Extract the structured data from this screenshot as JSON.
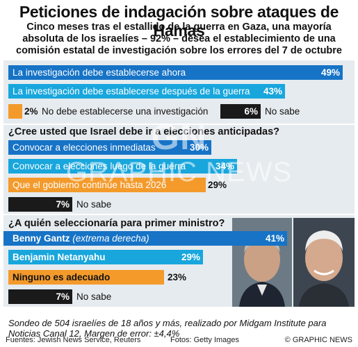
{
  "title": "Peticiones de indagación sobre ataques de Hamas",
  "subtitle_lines": [
    "Cinco meses tras el estallido de la guerra en Gaza, una mayoría",
    "absoluta de los israelíes – 92% – desea el establecimiento de una",
    "comisión estatal de investigación sobre los errores del 7 de octubre"
  ],
  "chart_data": [
    {
      "type": "bar",
      "question": "",
      "categories": [
        "La investigación debe establecerse ahora",
        "La investigación debe establecerse después de la guerra",
        "No debe establecerse una investigación",
        "No sabe"
      ],
      "values": [
        49,
        43,
        2,
        6
      ],
      "value_labels": [
        "49%",
        "43%",
        "2%",
        "6%"
      ],
      "colors": [
        "#1673c6",
        "#18a6dd",
        "#f39a2b",
        "#1a1a1a"
      ],
      "xlim": [
        0,
        50
      ]
    },
    {
      "type": "bar",
      "question": "¿Cree usted que Israel debe ir a elecciones anticipadas?",
      "categories": [
        "Convocar a elecciones inmediatas",
        "Convocar a elecciones luego de la guerra",
        "Que el gobierno continúe hasta 2026",
        "No sabe"
      ],
      "values": [
        30,
        34,
        29,
        7
      ],
      "value_labels": [
        "30%",
        "34%",
        "29%",
        "7%"
      ],
      "colors": [
        "#1673c6",
        "#18a6dd",
        "#f39a2b",
        "#1a1a1a"
      ],
      "xlim": [
        0,
        35
      ]
    },
    {
      "type": "bar",
      "question": "¿A quién seleccionaría para primer ministro?",
      "categories": [
        "Benny Gantz",
        "Benjamin Netanyahu",
        "Ninguno es adecuado",
        "No sabe"
      ],
      "category_notes": [
        "(extrema derecha)",
        "",
        "",
        ""
      ],
      "values": [
        41,
        29,
        23,
        7
      ],
      "value_labels": [
        "41%",
        "29%",
        "23%",
        "7%"
      ],
      "colors": [
        "#1673c6",
        "#18a6dd",
        "#f39a2b",
        "#1a1a1a"
      ],
      "xlim": [
        0,
        42
      ]
    }
  ],
  "watermark": {
    "logo": "GN",
    "text": "GRAPHIC NEWS"
  },
  "footnote": "Sondeo de 504 israelíes de 18 años y más, realizado por Midgam Institute para Noticias Canal 12, Margen de error: ±4,4%",
  "footer": {
    "sources": "Fuentes: Jewish News Service, Reuters",
    "photos": "Fotos: Getty Images",
    "copyright": "© GRAPHIC NEWS"
  }
}
